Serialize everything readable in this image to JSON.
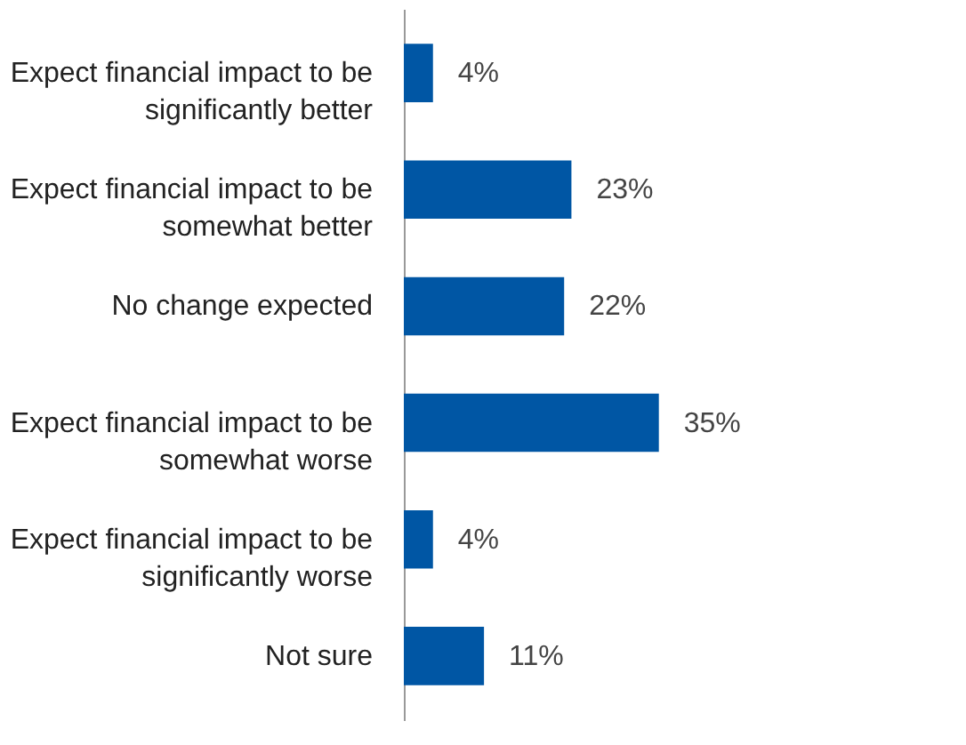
{
  "chart_data": {
    "type": "bar",
    "orientation": "horizontal",
    "categories": [
      "Expect financial impact to be significantly better",
      "Expect financial impact to be somewhat better",
      "No change expected",
      "Expect financial impact to be somewhat worse",
      "Expect financial impact to be significantly worse",
      "Not sure"
    ],
    "values": [
      4,
      23,
      22,
      35,
      4,
      11
    ],
    "value_labels": [
      "4%",
      "23%",
      "22%",
      "35%",
      "4%",
      "11%"
    ],
    "color": "#0056a4"
  }
}
